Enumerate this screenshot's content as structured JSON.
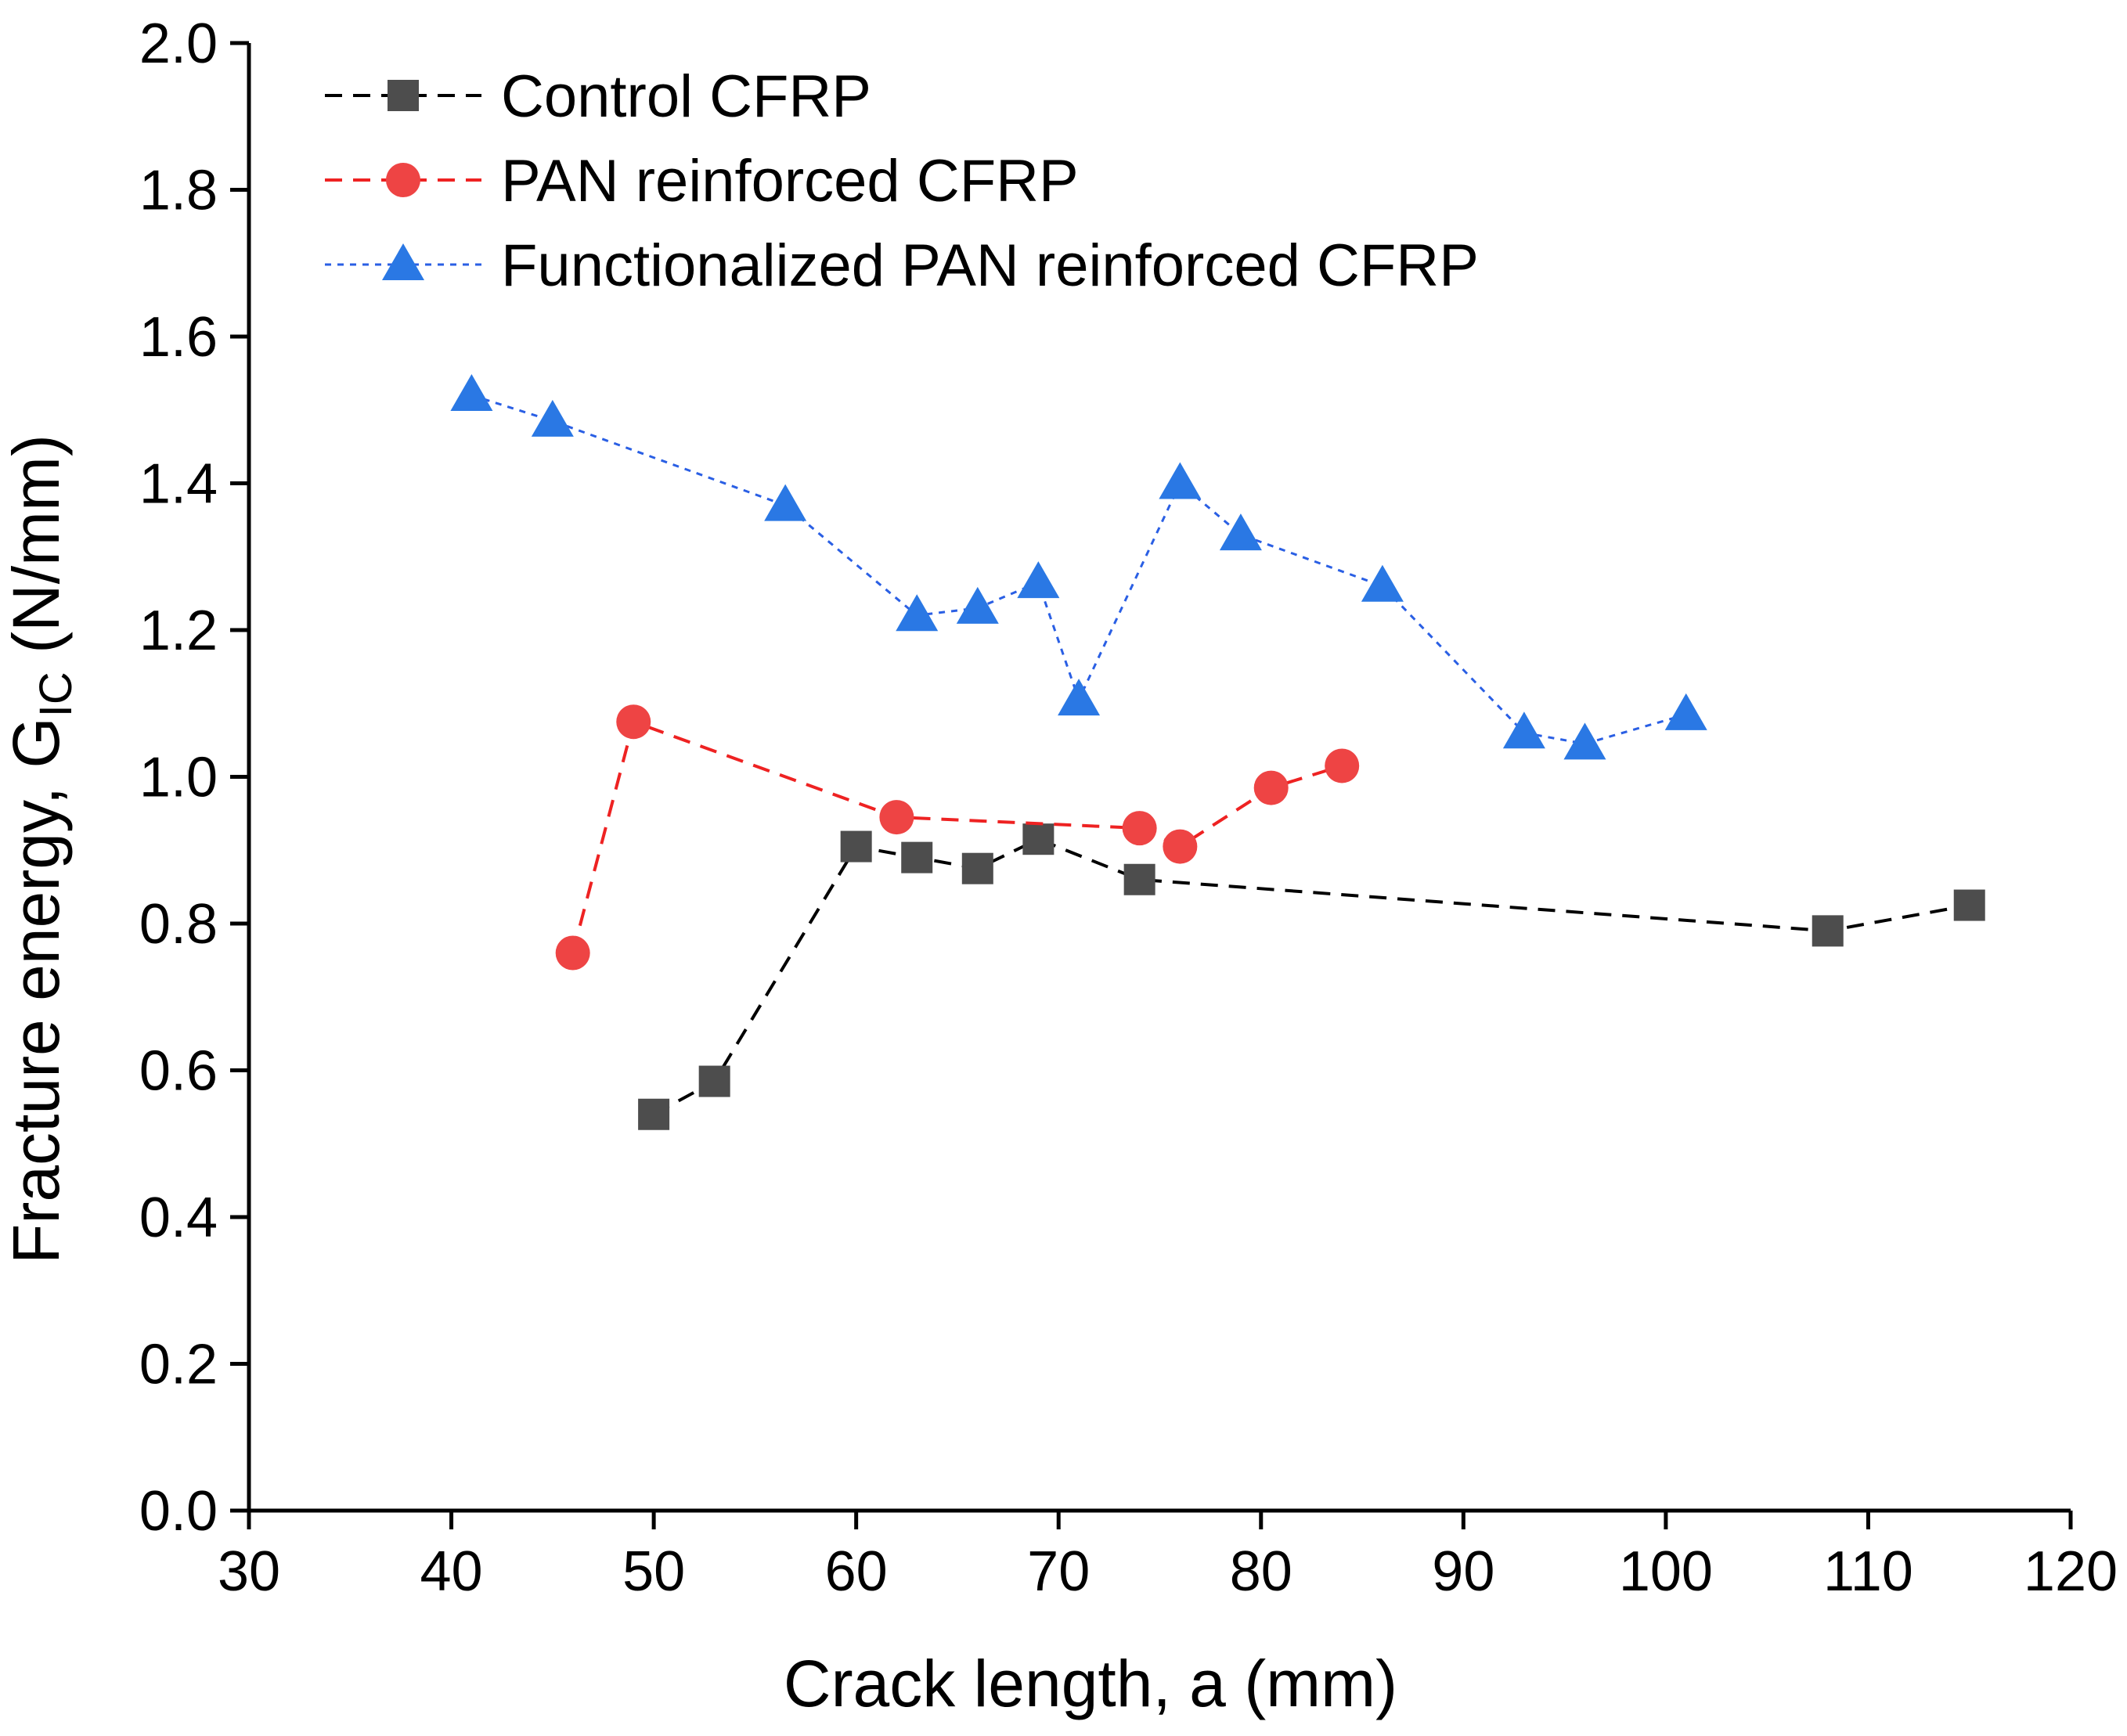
{
  "chart_data": {
    "type": "line",
    "xlabel": "Crack length, a (mm)",
    "ylabel": {
      "main": "Fracture energy, G",
      "subscript": "IC",
      "unit": " (N/mm)"
    },
    "xlim": [
      30,
      120
    ],
    "ylim": [
      0.0,
      2.0
    ],
    "x_ticks": [
      "30",
      "40",
      "50",
      "60",
      "70",
      "80",
      "90",
      "100",
      "110",
      "120"
    ],
    "y_ticks": [
      "0.0",
      "0.2",
      "0.4",
      "0.6",
      "0.8",
      "1.0",
      "1.2",
      "1.4",
      "1.6",
      "1.8",
      "2.0"
    ],
    "grid": false,
    "legend_position": "top-left",
    "series": [
      {
        "name": "Control CFRP",
        "color": "#4d4d4d",
        "line_color": "#000000",
        "marker": "square",
        "line_style": "dashed",
        "x": [
          50,
          53,
          60,
          63,
          66,
          69,
          74,
          108,
          115
        ],
        "y": [
          0.54,
          0.585,
          0.905,
          0.89,
          0.875,
          0.915,
          0.86,
          0.79,
          0.825
        ]
      },
      {
        "name": "PAN reinforced CFRP",
        "color": "#ee4444",
        "line_color": "#ee2222",
        "marker": "circle",
        "line_style": "dashed",
        "x": [
          46,
          49,
          62,
          74,
          76,
          80.5,
          84
        ],
        "y": [
          0.76,
          1.075,
          0.945,
          0.93,
          0.905,
          0.985,
          1.015
        ]
      },
      {
        "name": "Functionalized PAN reinforced CFRP",
        "color": "#2a78e4",
        "line_color": "#2a5fe4",
        "marker": "triangle",
        "line_style": "dotted",
        "x": [
          41,
          45,
          56.5,
          63,
          66,
          69,
          71,
          76,
          79,
          86,
          93,
          96,
          101
        ],
        "y": [
          1.52,
          1.485,
          1.37,
          1.22,
          1.23,
          1.265,
          1.105,
          1.4,
          1.33,
          1.26,
          1.06,
          1.045,
          1.085
        ]
      }
    ]
  }
}
